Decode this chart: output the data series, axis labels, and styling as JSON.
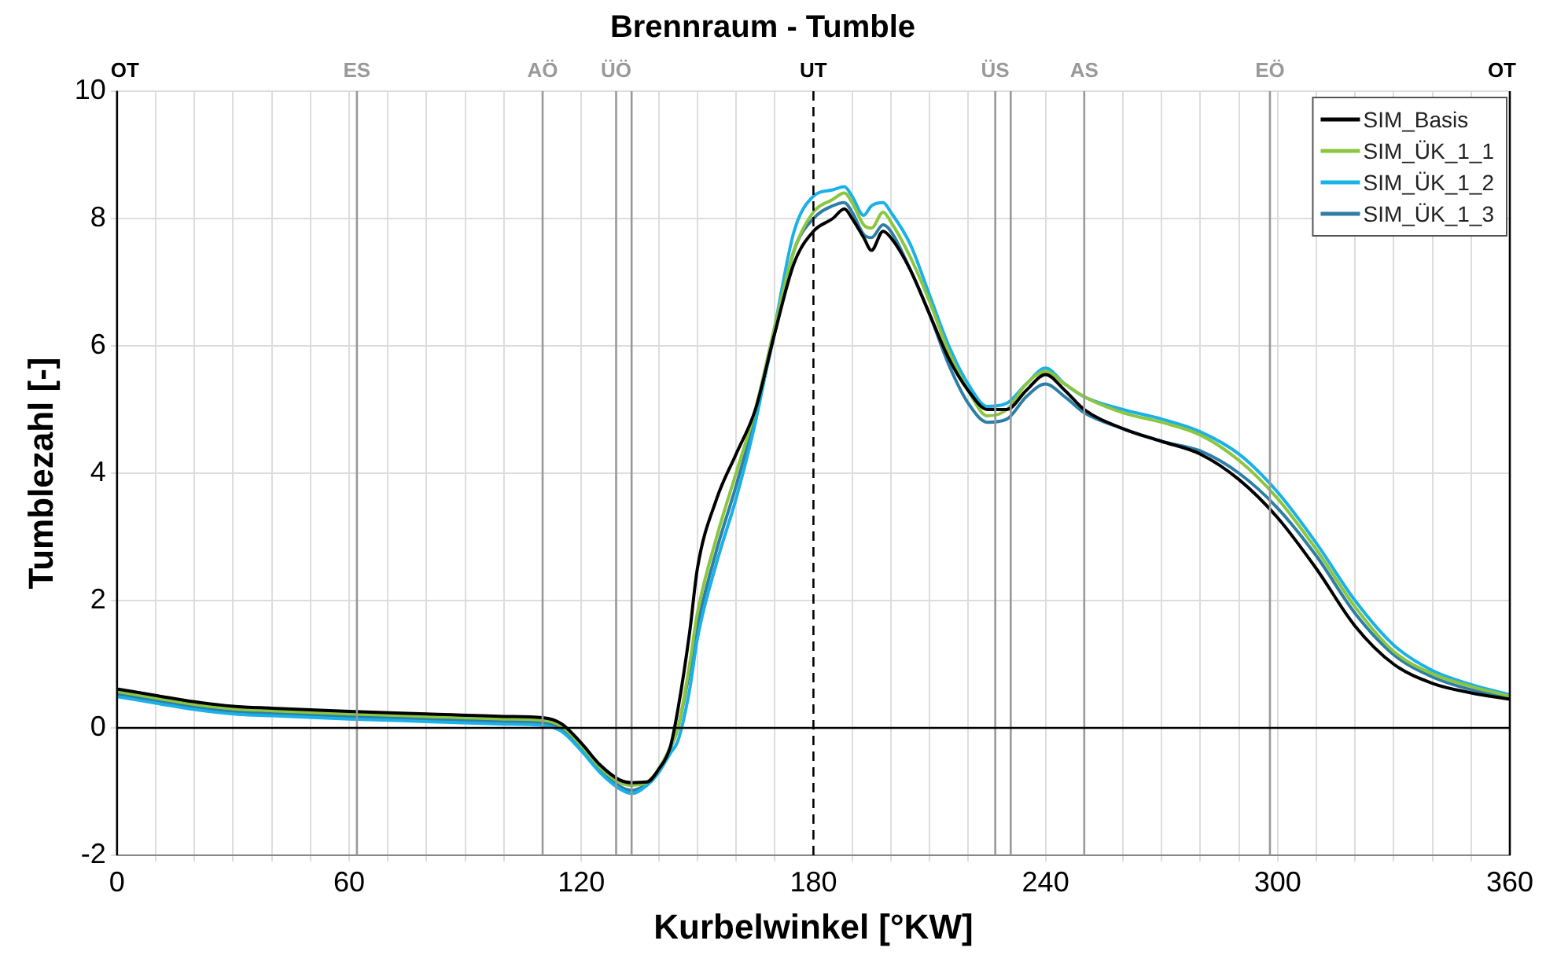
{
  "chart_data": {
    "type": "line",
    "title": "Brennraum - Tumble",
    "xlabel": "Kurbelwinkel [°KW]",
    "ylabel": "Tumblezahl [-]",
    "x": [
      0,
      10,
      20,
      30,
      40,
      60,
      80,
      100,
      110,
      115,
      120,
      125,
      130,
      133,
      137,
      140,
      143,
      145,
      148,
      150,
      155,
      160,
      165,
      170,
      175,
      180,
      185,
      188,
      190,
      193,
      195,
      198,
      200,
      205,
      210,
      215,
      220,
      225,
      230,
      235,
      240,
      245,
      250,
      260,
      270,
      280,
      290,
      300,
      310,
      320,
      330,
      340,
      350,
      360
    ],
    "series": [
      {
        "name": "SIM_Basis",
        "color": "#000000",
        "values": [
          0.61,
          0.51,
          0.41,
          0.34,
          0.31,
          0.26,
          0.22,
          0.18,
          0.16,
          0.06,
          -0.24,
          -0.59,
          -0.82,
          -0.86,
          -0.85,
          -0.65,
          -0.3,
          0.3,
          1.5,
          2.5,
          3.6,
          4.3,
          5.0,
          6.2,
          7.3,
          7.8,
          8.0,
          8.15,
          8.0,
          7.7,
          7.5,
          7.8,
          7.7,
          7.2,
          6.5,
          5.8,
          5.3,
          5.0,
          5.0,
          5.3,
          5.55,
          5.3,
          5.0,
          4.7,
          4.5,
          4.3,
          3.9,
          3.3,
          2.5,
          1.6,
          1.0,
          0.7,
          0.55,
          0.45
        ]
      },
      {
        "name": "SIM_ÜK_1_1",
        "color": "#8cc63f",
        "values": [
          0.57,
          0.47,
          0.37,
          0.3,
          0.27,
          0.22,
          0.18,
          0.14,
          0.12,
          0.02,
          -0.28,
          -0.63,
          -0.86,
          -0.9,
          -0.85,
          -0.65,
          -0.3,
          0.0,
          1.0,
          1.8,
          3.0,
          4.0,
          5.0,
          6.3,
          7.5,
          8.1,
          8.3,
          8.4,
          8.25,
          7.9,
          7.85,
          8.1,
          7.95,
          7.4,
          6.7,
          5.9,
          5.3,
          4.9,
          5.0,
          5.4,
          5.6,
          5.4,
          5.2,
          4.95,
          4.8,
          4.6,
          4.2,
          3.6,
          2.8,
          1.9,
          1.2,
          0.85,
          0.65,
          0.5
        ]
      },
      {
        "name": "SIM_ÜK_1_2",
        "color": "#1ab0e8",
        "values": [
          0.49,
          0.39,
          0.29,
          0.22,
          0.19,
          0.14,
          0.1,
          0.06,
          0.04,
          -0.06,
          -0.36,
          -0.71,
          -0.96,
          -1.03,
          -0.9,
          -0.7,
          -0.4,
          -0.2,
          0.6,
          1.4,
          2.6,
          3.6,
          4.8,
          6.3,
          7.8,
          8.35,
          8.45,
          8.5,
          8.35,
          8.05,
          8.2,
          8.25,
          8.1,
          7.6,
          6.8,
          6.0,
          5.4,
          5.05,
          5.1,
          5.4,
          5.65,
          5.4,
          5.2,
          5.0,
          4.85,
          4.65,
          4.3,
          3.7,
          2.9,
          2.0,
          1.3,
          0.9,
          0.68,
          0.52
        ]
      },
      {
        "name": "SIM_ÜK_1_3",
        "color": "#2e7ea6",
        "values": [
          0.53,
          0.43,
          0.33,
          0.26,
          0.23,
          0.18,
          0.14,
          0.1,
          0.08,
          -0.02,
          -0.32,
          -0.67,
          -0.92,
          -0.98,
          -0.87,
          -0.67,
          -0.32,
          0.0,
          0.9,
          1.6,
          2.8,
          3.8,
          4.9,
          6.2,
          7.5,
          8.0,
          8.2,
          8.25,
          8.1,
          7.75,
          7.7,
          7.9,
          7.8,
          7.2,
          6.5,
          5.7,
          5.1,
          4.8,
          4.85,
          5.2,
          5.4,
          5.2,
          4.95,
          4.7,
          4.5,
          4.35,
          4.0,
          3.45,
          2.7,
          1.8,
          1.15,
          0.8,
          0.6,
          0.48
        ]
      }
    ],
    "xlim": [
      0,
      360
    ],
    "xticks": [
      0,
      {
        "value": 10,
        "label": null
      },
      {
        "value": 20,
        "label": null
      },
      {
        "value": 30,
        "label": null
      },
      {
        "value": 40,
        "label": null
      },
      {
        "value": 50,
        "label": null
      },
      60,
      {
        "value": 70,
        "label": null
      },
      {
        "value": 80,
        "label": null
      },
      {
        "value": 90,
        "label": null
      },
      {
        "value": 100,
        "label": null
      },
      120,
      {
        "value": 140,
        "label": null
      },
      {
        "value": 150,
        "label": null
      },
      {
        "value": 160,
        "label": null
      },
      {
        "value": 170,
        "label": null
      },
      180,
      {
        "value": 190,
        "label": null
      },
      {
        "value": 200,
        "label": null
      },
      {
        "value": 210,
        "label": null
      },
      {
        "value": 220,
        "label": null
      },
      240,
      {
        "value": 260,
        "label": null
      },
      {
        "value": 270,
        "label": null
      },
      {
        "value": 280,
        "label": null
      },
      {
        "value": 290,
        "label": null
      },
      300,
      {
        "value": 310,
        "label": null
      },
      {
        "value": 320,
        "label": null
      },
      {
        "value": 330,
        "label": null
      },
      {
        "value": 340,
        "label": null
      },
      {
        "value": 350,
        "label": null
      },
      360
    ],
    "ylim": [
      -2,
      10
    ],
    "yticks": [
      -2,
      0,
      2,
      4,
      6,
      8,
      10
    ],
    "ref_lines": [
      {
        "axis": "x",
        "value": 0,
        "label": "OT",
        "color": "#000000"
      },
      {
        "axis": "x",
        "value": 62,
        "label": "ES",
        "color": "#999999"
      },
      {
        "axis": "x",
        "value": 110,
        "label": "AÖ",
        "color": "#999999"
      },
      {
        "axis": "x",
        "value": 129,
        "label": "ÜÖ",
        "color": "#999999"
      },
      {
        "axis": "x",
        "value": 133,
        "label": null,
        "color": "#999999"
      },
      {
        "axis": "x",
        "value": 180,
        "label": "UT",
        "color": "#000000",
        "line_style": "dashed"
      },
      {
        "axis": "x",
        "value": 227,
        "label": "ÜS",
        "color": "#999999"
      },
      {
        "axis": "x",
        "value": 231,
        "label": null,
        "color": "#999999"
      },
      {
        "axis": "x",
        "value": 250,
        "label": "AS",
        "color": "#999999"
      },
      {
        "axis": "x",
        "value": 298,
        "label": "EÖ",
        "color": "#999999"
      },
      {
        "axis": "x",
        "value": 360,
        "label": "OT",
        "color": "#000000"
      },
      {
        "axis": "y",
        "value": 0,
        "label": null,
        "color": "#000000"
      }
    ],
    "grid": true,
    "legend": "top right",
    "marker": "none",
    "line_style": "solid"
  }
}
